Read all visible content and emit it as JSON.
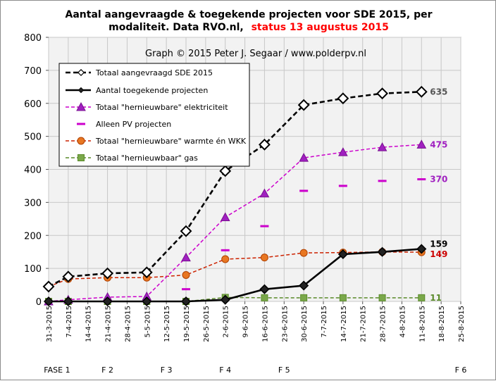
{
  "title": {
    "line1": "Aantal aangevraagde & toegekende projecten voor SDE 2015, per",
    "line2": "modaliteit. Data RVO.nl,",
    "status": "status 13 augustus 2015"
  },
  "watermark": "Graph  © 2015  Peter J. Segaar / www.polderpv.nl",
  "colors": {
    "plot_bg": "#f2f2f2",
    "grid": "#c8c8c8",
    "total_requested": "#000000",
    "awarded": "#000000",
    "renewable_electricity": "#cc00cc",
    "pv_only": "#cc00cc",
    "heat_chp": "#cc2200",
    "heat_marker": "#e87722",
    "gas": "#5a8a2a",
    "title_red": "#ff0000"
  },
  "chart_data": {
    "type": "line",
    "ylim": [
      0,
      800
    ],
    "yticks": [
      0,
      100,
      200,
      300,
      400,
      500,
      600,
      700,
      800
    ],
    "xlim": [
      "2015-03-31",
      "2015-08-25"
    ],
    "xtick_labels": [
      "31-3-2015",
      "7-4-2015",
      "14-4-2015",
      "21-4-2015",
      "28-4-2015",
      "5-5-2015",
      "12-5-2015",
      "19-5-2015",
      "26-5-2015",
      "2-6-2015",
      "9-6-2015",
      "16-6-2015",
      "23-6-2015",
      "30-6-2015",
      "7-7-2015",
      "14-7-2015",
      "21-7-2015",
      "28-7-2015",
      "4-8-2015",
      "11-8-2015",
      "18-8-2015",
      "25-8-2015"
    ],
    "grid": true,
    "legend_position": "top-left",
    "phases": [
      {
        "label": "FASE 1",
        "date": "2015-04-03"
      },
      {
        "label": "F 2",
        "date": "2015-04-21"
      },
      {
        "label": "F 3",
        "date": "2015-05-12"
      },
      {
        "label": "F 4",
        "date": "2015-06-02"
      },
      {
        "label": "F 5",
        "date": "2015-06-23"
      },
      {
        "label": "F 6",
        "date": "2015-08-25"
      }
    ],
    "series": [
      {
        "name": "Totaal aangevraagd SDE 2015",
        "style": "black-dashed-diamond",
        "x": [
          "2015-03-31",
          "2015-04-07",
          "2015-04-21",
          "2015-05-05",
          "2015-05-19",
          "2015-06-02",
          "2015-06-16",
          "2015-06-30",
          "2015-07-14",
          "2015-07-28",
          "2015-08-11"
        ],
        "y": [
          45,
          75,
          85,
          88,
          213,
          395,
          475,
          595,
          615,
          630,
          635
        ]
      },
      {
        "name": "Aantal toegekende projecten",
        "style": "black-solid-diamond",
        "x": [
          "2015-03-31",
          "2015-04-07",
          "2015-04-21",
          "2015-05-05",
          "2015-05-19",
          "2015-06-02",
          "2015-06-16",
          "2015-06-30",
          "2015-07-14",
          "2015-07-28",
          "2015-08-11"
        ],
        "y": [
          0,
          0,
          0,
          0,
          0,
          5,
          37,
          48,
          143,
          150,
          159
        ]
      },
      {
        "name": "Totaal \"hernieuwbare\" elektriciteit",
        "style": "magenta-dashed-triangle",
        "x": [
          "2015-03-31",
          "2015-04-07",
          "2015-04-21",
          "2015-05-05",
          "2015-05-19",
          "2015-06-02",
          "2015-06-16",
          "2015-06-30",
          "2015-07-14",
          "2015-07-28",
          "2015-08-11"
        ],
        "y": [
          0,
          5,
          13,
          15,
          133,
          255,
          327,
          435,
          452,
          467,
          475
        ]
      },
      {
        "name": "Alleen PV projecten",
        "style": "magenta-dash-marker",
        "x": [
          "2015-05-19",
          "2015-06-02",
          "2015-06-16",
          "2015-06-30",
          "2015-07-14",
          "2015-07-28",
          "2015-08-11"
        ],
        "y": [
          37,
          155,
          228,
          335,
          350,
          365,
          370
        ]
      },
      {
        "name": "Totaal \"hernieuwbare\" warmte én WKK",
        "style": "red-dashed-circle",
        "x": [
          "2015-03-31",
          "2015-04-07",
          "2015-04-21",
          "2015-05-05",
          "2015-05-19",
          "2015-06-02",
          "2015-06-16",
          "2015-06-30",
          "2015-07-14",
          "2015-07-28",
          "2015-08-11"
        ],
        "y": [
          45,
          68,
          72,
          72,
          80,
          128,
          133,
          147,
          148,
          150,
          149
        ]
      },
      {
        "name": "Totaal \"hernieuwbaar\" gas",
        "style": "green-dashed-square",
        "x": [
          "2015-03-31",
          "2015-04-07",
          "2015-04-21",
          "2015-05-05",
          "2015-05-19",
          "2015-06-02",
          "2015-06-16",
          "2015-06-30",
          "2015-07-14",
          "2015-07-28",
          "2015-08-11"
        ],
        "y": [
          0,
          0,
          0,
          0,
          0,
          12,
          11,
          11,
          11,
          11,
          11
        ]
      }
    ],
    "end_labels": [
      {
        "text": "635",
        "series": 0
      },
      {
        "text": "159",
        "series": 1
      },
      {
        "text": "475",
        "series": 2
      },
      {
        "text": "370",
        "series": 3
      },
      {
        "text": "149",
        "series": 4
      },
      {
        "text": "11",
        "series": 5
      }
    ]
  }
}
